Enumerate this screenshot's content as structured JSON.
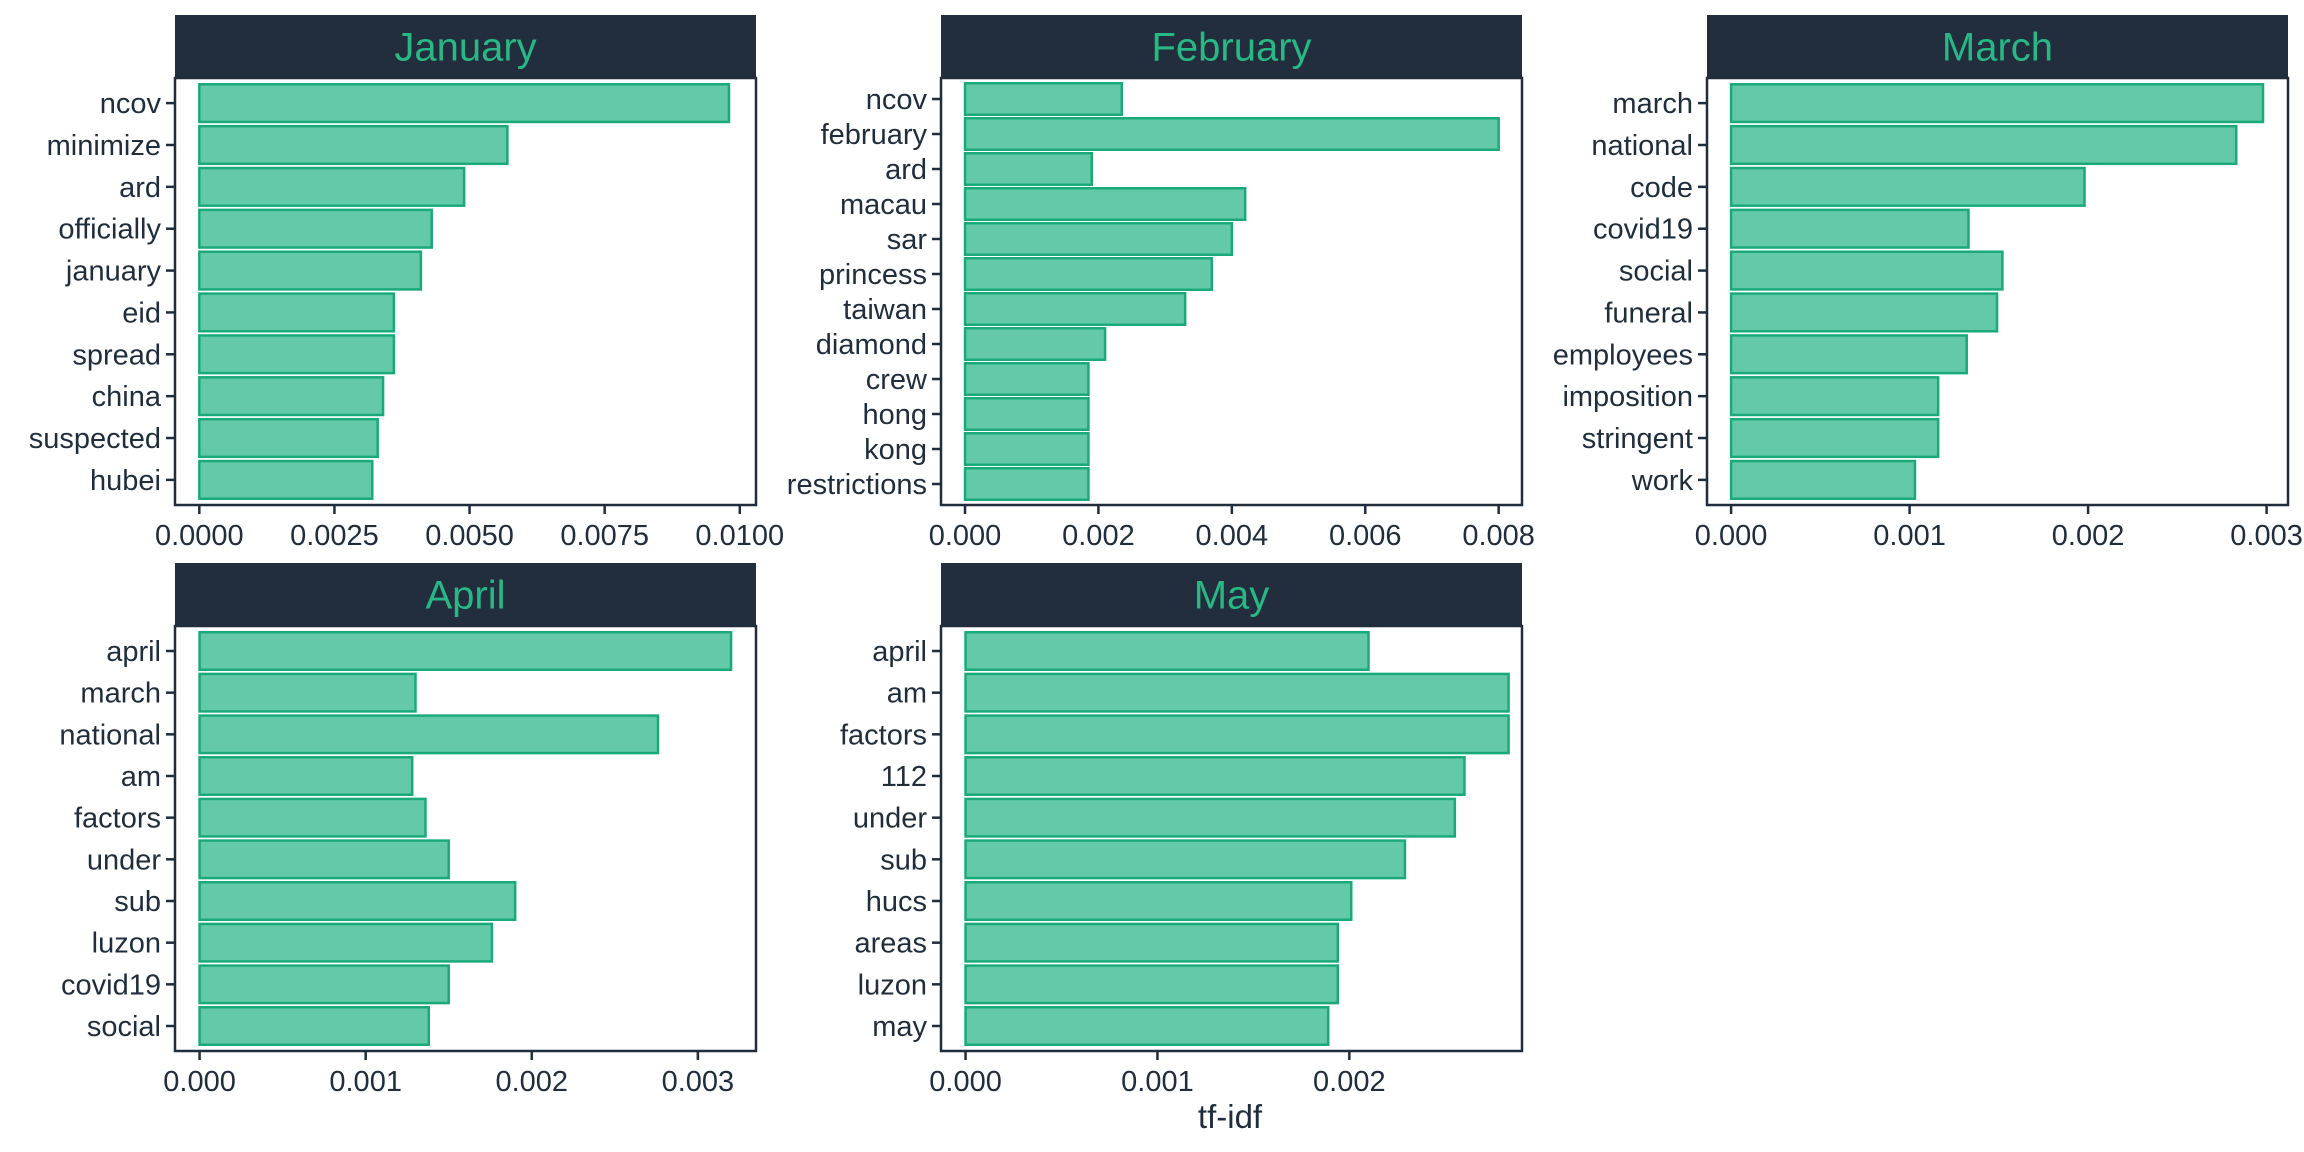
{
  "colors": {
    "strip_bg": "#222d3d",
    "strip_text": "#28b886",
    "bar_fill": "#63c9a9",
    "bar_stroke": "#1aaa7a",
    "axis": "#1f2d3d",
    "text": "#1f2d3d"
  },
  "chart_data": {
    "type": "bar",
    "orientation": "horizontal",
    "xlabel": "tf-idf",
    "ylabel": "",
    "grid": false,
    "panels": [
      {
        "title": "January",
        "categories": [
          "ncov",
          "minimize",
          "ard",
          "officially",
          "january",
          "eid",
          "spread",
          "china",
          "suspected",
          "hubei"
        ],
        "values": [
          0.0098,
          0.0057,
          0.0049,
          0.0043,
          0.0041,
          0.0036,
          0.0036,
          0.0034,
          0.0033,
          0.0032
        ],
        "xlim": [
          -0.00045,
          0.0103
        ],
        "ticks": [
          0,
          0.0025,
          0.005,
          0.0075,
          0.01
        ],
        "tick_labels": [
          "0.0000",
          "0.0025",
          "0.0050",
          "0.0075",
          "0.0100"
        ]
      },
      {
        "title": "February",
        "categories": [
          "ncov",
          "february",
          "ard",
          "macau",
          "sar",
          "princess",
          "taiwan",
          "diamond",
          "crew",
          "hong",
          "kong",
          "restrictions"
        ],
        "values": [
          0.00235,
          0.008,
          0.0019,
          0.0042,
          0.004,
          0.0037,
          0.0033,
          0.0021,
          0.00185,
          0.00185,
          0.00185,
          0.00185
        ],
        "xlim": [
          -0.00036,
          0.00835
        ],
        "ticks": [
          0,
          0.002,
          0.004,
          0.006,
          0.008
        ],
        "tick_labels": [
          "0.000",
          "0.002",
          "0.004",
          "0.006",
          "0.008"
        ]
      },
      {
        "title": "March",
        "categories": [
          "march",
          "national",
          "code",
          "covid19",
          "social",
          "funeral",
          "employees",
          "imposition",
          "stringent",
          "work"
        ],
        "values": [
          0.00298,
          0.00283,
          0.00198,
          0.00133,
          0.00152,
          0.00149,
          0.00132,
          0.00116,
          0.00116,
          0.00103
        ],
        "xlim": [
          -0.000135,
          0.00312
        ],
        "ticks": [
          0,
          0.001,
          0.002,
          0.003
        ],
        "tick_labels": [
          "0.000",
          "0.001",
          "0.002",
          "0.003"
        ]
      },
      {
        "title": "April",
        "categories": [
          "april",
          "march",
          "national",
          "am",
          "factors",
          "under",
          "sub",
          "luzon",
          "covid19",
          "social"
        ],
        "values": [
          0.0032,
          0.0013,
          0.00276,
          0.00128,
          0.00136,
          0.0015,
          0.0019,
          0.00176,
          0.0015,
          0.00138
        ],
        "xlim": [
          -0.000148,
          0.00335
        ],
        "ticks": [
          0,
          0.001,
          0.002,
          0.003
        ],
        "tick_labels": [
          "0.000",
          "0.001",
          "0.002",
          "0.003"
        ]
      },
      {
        "title": "May",
        "categories": [
          "april",
          "am",
          "factors",
          "112",
          "under",
          "sub",
          "hucs",
          "areas",
          "luzon",
          "may"
        ],
        "values": [
          0.0021,
          0.00283,
          0.00283,
          0.0026,
          0.00255,
          0.00229,
          0.00201,
          0.00194,
          0.00194,
          0.00189
        ],
        "xlim": [
          -0.000128,
          0.0029
        ],
        "ticks": [
          0,
          0.001,
          0.002
        ],
        "tick_labels": [
          "0.000",
          "0.001",
          "0.002"
        ]
      }
    ]
  }
}
